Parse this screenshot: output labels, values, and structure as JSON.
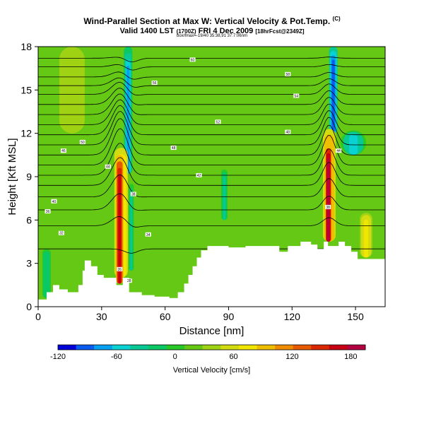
{
  "header": {
    "title": "Wind-Parallel Section at Max W: Vertical Velocity & Pot.Temp.",
    "title_mark": "(C)",
    "subtitle": "Valid 1400 LST",
    "subtitle_small": "(1700Z)",
    "subtitle_rest": "FRI 4 Dec 2009",
    "subtitle_small2": "[18hrFcst@2349Z]",
    "subtitle3": "box/fmax=-19/40 35:38,91 37:7:06nm"
  },
  "colors": {
    "terrain": "#ffffff",
    "background_fill": "#44c80c",
    "contour_line": "#000000"
  },
  "chart_data": {
    "type": "heatmap",
    "xlabel": "Distance [nm]",
    "ylabel": "Height [Kft MSL]",
    "xlim": [
      0,
      164
    ],
    "ylim": [
      0,
      18
    ],
    "xticks": [
      0,
      30,
      60,
      90,
      120,
      150
    ],
    "yticks": [
      0,
      3,
      6,
      9,
      12,
      15,
      18
    ],
    "colorbar": {
      "label": "Vertical Velocity [cm/s]",
      "tick_values": [
        -120,
        -60,
        0,
        60,
        120,
        180
      ],
      "range": [
        -120,
        195
      ],
      "colors": [
        "#0000d8",
        "#0a5cf0",
        "#06a0f0",
        "#0ad2d2",
        "#08c896",
        "#0ac864",
        "#28c828",
        "#64c814",
        "#a0d214",
        "#d2dc10",
        "#f0e600",
        "#f0be00",
        "#f08c00",
        "#e85a00",
        "#dc2800",
        "#c80014",
        "#b40040"
      ]
    },
    "terrain": [
      {
        "x": 0,
        "z": 0.5
      },
      {
        "x": 4,
        "z": 0.5
      },
      {
        "x": 4,
        "z": 1.0
      },
      {
        "x": 7,
        "z": 1.0
      },
      {
        "x": 7,
        "z": 1.5
      },
      {
        "x": 10,
        "z": 1.5
      },
      {
        "x": 10,
        "z": 1.2
      },
      {
        "x": 14,
        "z": 1.2
      },
      {
        "x": 14,
        "z": 1.0
      },
      {
        "x": 19,
        "z": 1.0
      },
      {
        "x": 19,
        "z": 1.5
      },
      {
        "x": 21,
        "z": 1.5
      },
      {
        "x": 21,
        "z": 2.5
      },
      {
        "x": 22,
        "z": 2.5
      },
      {
        "x": 22,
        "z": 3.2
      },
      {
        "x": 25,
        "z": 3.2
      },
      {
        "x": 25,
        "z": 2.8
      },
      {
        "x": 28,
        "z": 2.8
      },
      {
        "x": 28,
        "z": 2.2
      },
      {
        "x": 31,
        "z": 2.2
      },
      {
        "x": 31,
        "z": 2.0
      },
      {
        "x": 37,
        "z": 2.0
      },
      {
        "x": 37,
        "z": 1.5
      },
      {
        "x": 40,
        "z": 1.5
      },
      {
        "x": 40,
        "z": 2.0
      },
      {
        "x": 43,
        "z": 2.0
      },
      {
        "x": 43,
        "z": 1.0
      },
      {
        "x": 49,
        "z": 1.0
      },
      {
        "x": 49,
        "z": 0.8
      },
      {
        "x": 55,
        "z": 0.8
      },
      {
        "x": 55,
        "z": 0.7
      },
      {
        "x": 62,
        "z": 0.7
      },
      {
        "x": 62,
        "z": 0.6
      },
      {
        "x": 66,
        "z": 0.6
      },
      {
        "x": 66,
        "z": 1.0
      },
      {
        "x": 69,
        "z": 1.0
      },
      {
        "x": 69,
        "z": 1.6
      },
      {
        "x": 71,
        "z": 1.6
      },
      {
        "x": 71,
        "z": 2.2
      },
      {
        "x": 73,
        "z": 2.2
      },
      {
        "x": 73,
        "z": 2.8
      },
      {
        "x": 75,
        "z": 2.8
      },
      {
        "x": 75,
        "z": 3.4
      },
      {
        "x": 77,
        "z": 3.4
      },
      {
        "x": 77,
        "z": 3.9
      },
      {
        "x": 80,
        "z": 3.9
      },
      {
        "x": 80,
        "z": 4.2
      },
      {
        "x": 90,
        "z": 4.2
      },
      {
        "x": 90,
        "z": 4.1
      },
      {
        "x": 98,
        "z": 4.1
      },
      {
        "x": 98,
        "z": 4.2
      },
      {
        "x": 114,
        "z": 4.2
      },
      {
        "x": 114,
        "z": 3.8
      },
      {
        "x": 118,
        "z": 3.8
      },
      {
        "x": 118,
        "z": 4.2
      },
      {
        "x": 124,
        "z": 4.2
      },
      {
        "x": 124,
        "z": 4.5
      },
      {
        "x": 129,
        "z": 4.5
      },
      {
        "x": 129,
        "z": 4.3
      },
      {
        "x": 132,
        "z": 4.3
      },
      {
        "x": 132,
        "z": 4.0
      },
      {
        "x": 135,
        "z": 4.0
      },
      {
        "x": 135,
        "z": 4.5
      },
      {
        "x": 137,
        "z": 4.5
      },
      {
        "x": 137,
        "z": 4.2
      },
      {
        "x": 142,
        "z": 4.2
      },
      {
        "x": 142,
        "z": 4.5
      },
      {
        "x": 145,
        "z": 4.5
      },
      {
        "x": 145,
        "z": 4.2
      },
      {
        "x": 148,
        "z": 4.2
      },
      {
        "x": 148,
        "z": 3.8
      },
      {
        "x": 151,
        "z": 3.8
      },
      {
        "x": 151,
        "z": 3.3
      },
      {
        "x": 164,
        "z": 3.3
      }
    ],
    "features": [
      {
        "name": "updraft-west-core",
        "x": 38.5,
        "z0": 1.6,
        "z1": 10.5,
        "half_width": 1.8,
        "w": 175
      },
      {
        "name": "updraft-west-mid",
        "x": 39.2,
        "z0": 2.0,
        "z1": 11.0,
        "half_width": 3.2,
        "w": 90
      },
      {
        "name": "updraft-east-core",
        "x": 137.2,
        "z0": 4.5,
        "z1": 11.3,
        "half_width": 1.6,
        "w": 195
      },
      {
        "name": "updraft-east-mid",
        "x": 137.6,
        "z0": 4.5,
        "z1": 12.3,
        "half_width": 3.0,
        "w": 110
      },
      {
        "name": "downdraft-west-top",
        "x": 42.5,
        "z0": 9.2,
        "z1": 18.0,
        "half_width": 2.0,
        "w": -65
      },
      {
        "name": "downdraft-west-low",
        "x": 44.0,
        "z0": 2.5,
        "z1": 8.5,
        "half_width": 1.2,
        "w": -30
      },
      {
        "name": "downdraft-mid",
        "x": 88.0,
        "z0": 6.0,
        "z1": 9.5,
        "half_width": 1.5,
        "w": -30
      },
      {
        "name": "downdraft-east-top",
        "x": 139.5,
        "z0": 12.0,
        "z1": 18.0,
        "half_width": 2.0,
        "w": -95
      },
      {
        "name": "downdraft-east-right",
        "x": 149.0,
        "z0": 10.5,
        "z1": 12.2,
        "half_width": 6.0,
        "w": -50
      },
      {
        "name": "downdraft-left-low",
        "x": 4.0,
        "z0": 0.6,
        "z1": 4.0,
        "half_width": 2.0,
        "w": -25
      },
      {
        "name": "updraft-upper-west",
        "x": 16.0,
        "z0": 12.0,
        "z1": 18.0,
        "half_width": 6.0,
        "w": 35
      },
      {
        "name": "updraft-low-east",
        "x": 155.0,
        "z0": 3.4,
        "z1": 6.5,
        "half_width": 3.0,
        "w": 70
      }
    ],
    "isentropes": [
      {
        "theta": "26",
        "z": 4.0,
        "d": 0.0,
        "lx": 38.5,
        "lz": 2.6
      },
      {
        "theta": "28",
        "z": 5.6,
        "d": 0.7,
        "lx": 43,
        "lz": 1.8
      },
      {
        "theta": "30",
        "z": 6.7,
        "d": 1.2
      },
      {
        "theta": "32",
        "z": 7.6,
        "d": 1.6,
        "lx": 11,
        "lz": 5.1
      },
      {
        "theta": "34",
        "z": 8.4,
        "d": 2.0,
        "lx": 52,
        "lz": 5.0
      },
      {
        "theta": "36",
        "z": 9.1,
        "d": 2.3,
        "lx": 4.5,
        "lz": 6.6
      },
      {
        "theta": "38",
        "z": 9.8,
        "d": 2.6,
        "lx": 45,
        "lz": 7.8,
        "lx2": 137,
        "lz2": 6.9
      },
      {
        "theta": "40",
        "z": 10.5,
        "d": 2.6,
        "lx": 7.5,
        "lz": 7.3
      },
      {
        "theta": "42",
        "z": 11.2,
        "d": 2.4,
        "lx": 76,
        "lz": 9.1
      },
      {
        "theta": "44",
        "z": 11.9,
        "d": 2.1,
        "lx": 33,
        "lz": 9.7,
        "lx2": 142,
        "lz2": 10.8
      },
      {
        "theta": "46",
        "z": 12.6,
        "d": 1.8,
        "lx": 12,
        "lz": 10.8
      },
      {
        "theta": "48",
        "z": 13.3,
        "d": 1.5,
        "lx": 64,
        "lz": 11.0,
        "lx2": 118,
        "lz2": 12.1
      },
      {
        "theta": "50",
        "z": 14.0,
        "d": 1.2,
        "lx": 21,
        "lz": 11.4
      },
      {
        "theta": "52",
        "z": 14.7,
        "d": 0.9,
        "lx": 85,
        "lz": 12.8
      },
      {
        "theta": "54",
        "z": 15.3,
        "d": 0.6,
        "lx": 122,
        "lz": 14.6
      },
      {
        "theta": "56",
        "z": 15.9,
        "d": 0.4,
        "lx": 55,
        "lz": 15.5
      },
      {
        "theta": "58",
        "z": 16.6,
        "d": 0.2,
        "lx": 118,
        "lz": 16.1
      },
      {
        "theta": "60",
        "z": 17.2,
        "d": 0.1,
        "lx": 73,
        "lz": 17.1
      }
    ]
  }
}
